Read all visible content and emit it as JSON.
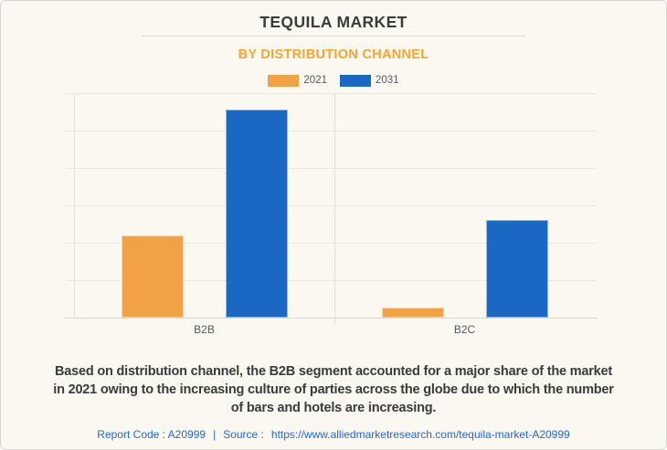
{
  "header": {
    "title": "TEQUILA MARKET",
    "subtitle": "BY DISTRIBUTION CHANNEL"
  },
  "chart_data": {
    "type": "bar",
    "title": "TEQUILA MARKET",
    "subtitle": "BY DISTRIBUTION CHANNEL",
    "categories": [
      "B2B",
      "B2C"
    ],
    "series": [
      {
        "name": "2021",
        "color": "#f0a245",
        "values": [
          2.2,
          0.27
        ]
      },
      {
        "name": "2031",
        "color": "#1a67c4",
        "values": [
          5.55,
          2.6
        ]
      }
    ],
    "ylim": [
      0,
      6
    ],
    "ylabel": "",
    "xlabel": "",
    "grid": "horizontal",
    "gridline_interval": 1,
    "value_axis_visible": false,
    "legend_position": "top-center",
    "units": "relative scale (no numeric value axis shown in image)"
  },
  "annotation": {
    "lines": [
      "Based on distribution channel, the B2B segment accounted for a major share of the market",
      "in 2021 owing to the increasing culture of parties across the globe due to which the number",
      "of bars and hotels are increasing."
    ],
    "full_text": "Based on distribution channel, the B2B segment accounted for a major share of the market in 2021 owing to the increasing culture of parties across the globe due to which the number of bars and hotels are increasing."
  },
  "footer": {
    "report_code": "Report Code : A20999",
    "separator": "|",
    "source_label": "Source :",
    "source_url": "https://www.alliedmarketresearch.com/tequila-market-A20999"
  },
  "colors": {
    "background": "#faf8f1",
    "card_border": "#d8d6ce",
    "title_text": "#3b3b3b",
    "subtitle_text": "#f6a62b",
    "series_2021": "#f0a245",
    "series_2031": "#1a67c4",
    "gridline": "#e9e7df",
    "axis_line": "#d9d7cf",
    "axis_label": "#55565a",
    "annotation_text": "#3a3a3b",
    "footer_link": "#2268d3"
  }
}
